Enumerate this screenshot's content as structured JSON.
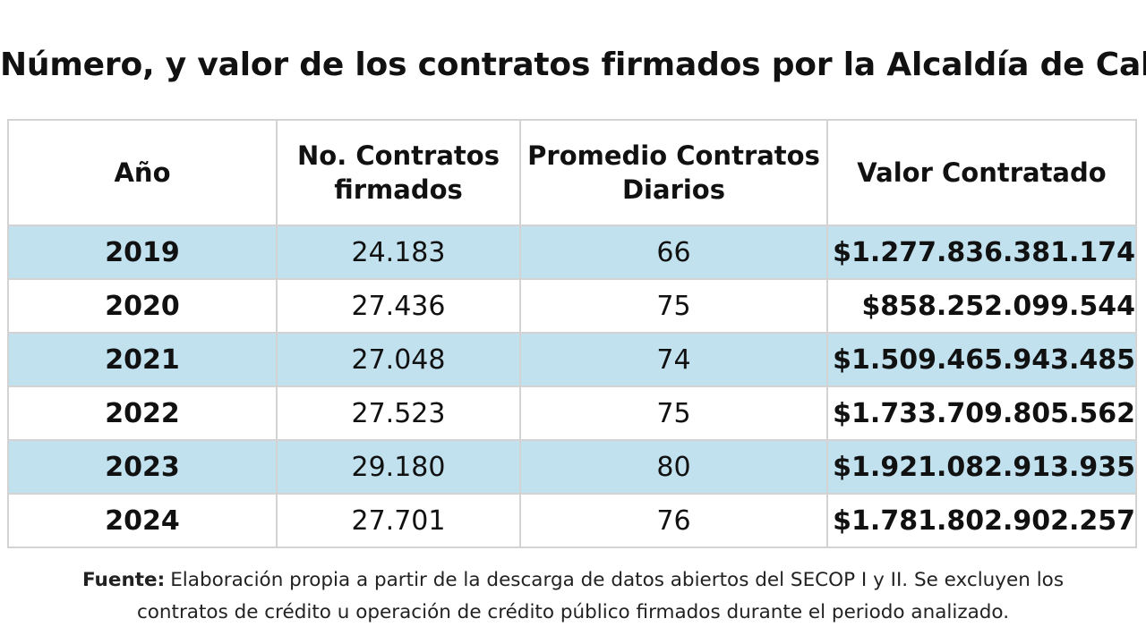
{
  "title": "Número, y valor de los contratos firmados por la Alcaldía de Cali",
  "table": {
    "headers": {
      "year": "Año",
      "contracts_line1": "No. Contratos",
      "contracts_line2": "firmados",
      "daily_line1": "Promedio Contratos",
      "daily_line2": "Diarios",
      "value": "Valor Contratado"
    },
    "rows": [
      {
        "year": "2019",
        "contracts": "24.183",
        "daily": "66",
        "value": "$1.277.836.381.174"
      },
      {
        "year": "2020",
        "contracts": "27.436",
        "daily": "75",
        "value": "$858.252.099.544"
      },
      {
        "year": "2021",
        "contracts": "27.048",
        "daily": "74",
        "value": "$1.509.465.943.485"
      },
      {
        "year": "2022",
        "contracts": "27.523",
        "daily": "75",
        "value": "$1.733.709.805.562"
      },
      {
        "year": "2023",
        "contracts": "29.180",
        "daily": "80",
        "value": "$1.921.082.913.935"
      },
      {
        "year": "2024",
        "contracts": "27.701",
        "daily": "76",
        "value": "$1.781.802.902.257"
      }
    ]
  },
  "footnote": {
    "label": "Fuente:",
    "line1": "Elaboración propia a partir de la descarga de datos abiertos del SECOP I y II. Se excluyen los",
    "line2": "contratos de crédito u operación de crédito público firmados durante el periodo analizado."
  },
  "colors": {
    "shaded_row": "#c1e1ef",
    "border": "#d3d3d3"
  },
  "chart_data": {
    "type": "table",
    "title": "Número, y valor de los contratos firmados por la Alcaldía de Cali",
    "columns": [
      "Año",
      "No. Contratos firmados",
      "Promedio Contratos Diarios",
      "Valor Contratado"
    ],
    "rows": [
      [
        2019,
        24183,
        66,
        1277836381174
      ],
      [
        2020,
        27436,
        75,
        858252099544
      ],
      [
        2021,
        27048,
        74,
        1509465943485
      ],
      [
        2022,
        27523,
        75,
        1733709805562
      ],
      [
        2023,
        29180,
        80,
        1921082913935
      ],
      [
        2024,
        27701,
        76,
        1781802902257
      ]
    ]
  }
}
